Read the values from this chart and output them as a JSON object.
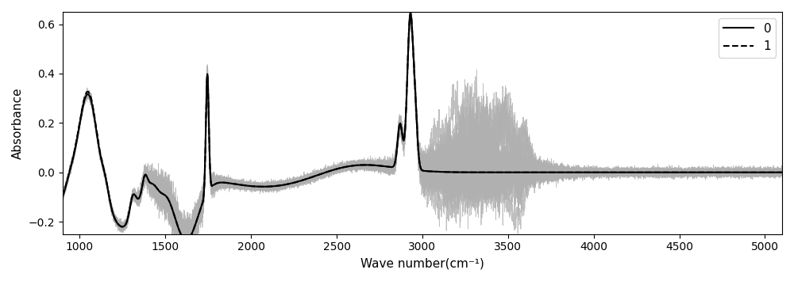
{
  "xlabel": "Wave number(cm⁻¹)",
  "ylabel": "Absorbance",
  "xlim": [
    900,
    5100
  ],
  "ylim": [
    -0.25,
    0.65
  ],
  "xticks": [
    1000,
    1500,
    2000,
    2500,
    3000,
    3500,
    4000,
    4500,
    5000
  ],
  "yticks": [
    -0.2,
    0.0,
    0.2,
    0.4,
    0.6
  ],
  "legend_labels": [
    "0",
    "1"
  ],
  "line0_color": "black",
  "line1_color": "black",
  "line0_style": "solid",
  "line1_style": "dashed",
  "gray_color": "#b0b0b0",
  "figsize": [
    10.0,
    3.55
  ],
  "dpi": 100
}
